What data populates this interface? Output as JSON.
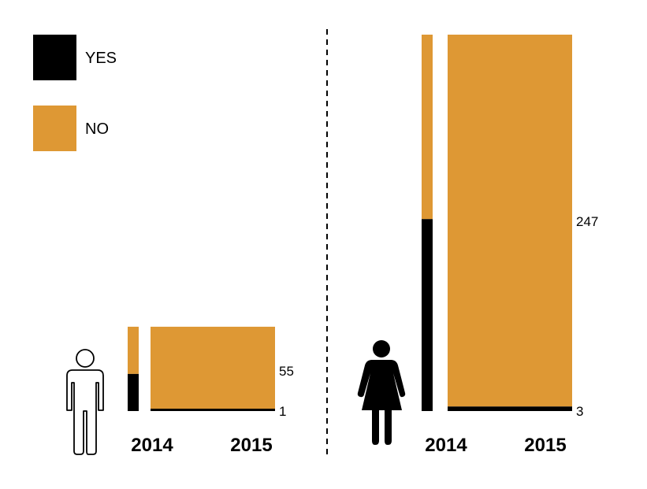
{
  "colors": {
    "yes": "#000000",
    "no": "#DE9834"
  },
  "legend": [
    {
      "label": "YES",
      "color": "#000000"
    },
    {
      "label": "NO",
      "color": "#DE9834"
    }
  ],
  "chart_data": [
    {
      "type": "bar",
      "stacked": true,
      "group_icon": "man-icon",
      "categories": [
        "2014",
        "2015"
      ],
      "series": [
        {
          "name": "YES",
          "values": [
            null,
            1
          ]
        },
        {
          "name": "NO",
          "values": [
            null,
            55
          ]
        }
      ],
      "value_labels": {
        "2015": {
          "YES": "1",
          "NO": "55"
        }
      }
    },
    {
      "type": "bar",
      "stacked": true,
      "group_icon": "woman-icon",
      "categories": [
        "2014",
        "2015"
      ],
      "series": [
        {
          "name": "YES",
          "values": [
            null,
            3
          ]
        },
        {
          "name": "NO",
          "values": [
            null,
            247
          ]
        }
      ],
      "value_labels": {
        "2015": {
          "YES": "3",
          "NO": "247"
        }
      }
    }
  ],
  "proportions_2014": {
    "men_yes_share": 0.44,
    "women_yes_share": 0.51
  }
}
